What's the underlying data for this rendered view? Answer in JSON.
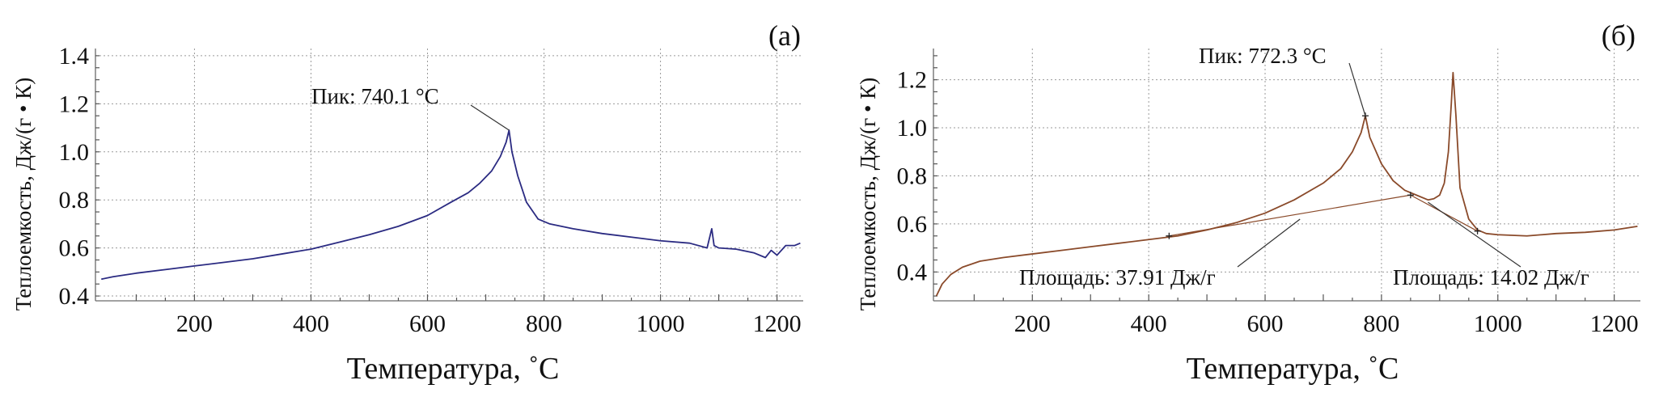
{
  "chart_data": [
    {
      "type": "line",
      "panel_label": "(a)",
      "xlabel": "Температура, ˚С",
      "ylabel": "Теплоемкость, Дж/(г • К)",
      "xlim": [
        30,
        1245
      ],
      "ylim": [
        0.38,
        1.43
      ],
      "xticks": [
        200,
        400,
        600,
        800,
        1000,
        1200
      ],
      "yticks": [
        0.4,
        0.6,
        0.8,
        1.0,
        1.2,
        1.4
      ],
      "ytick_labels": [
        "0.4",
        "0.6",
        "0.8",
        "1.0",
        "1.2",
        "1.4"
      ],
      "grid": true,
      "color": "#2b2b82",
      "series": [
        {
          "x": [
            40,
            60,
            100,
            150,
            200,
            250,
            300,
            350,
            400,
            450,
            500,
            550,
            600,
            640,
            670,
            690,
            710,
            725,
            735,
            740,
            745,
            755,
            770,
            790,
            810,
            850,
            900,
            950,
            1000,
            1050,
            1080,
            1088,
            1092,
            1100,
            1130,
            1160,
            1180,
            1190,
            1200,
            1215,
            1230,
            1240
          ],
          "y": [
            0.47,
            0.48,
            0.495,
            0.51,
            0.525,
            0.54,
            0.555,
            0.575,
            0.595,
            0.625,
            0.655,
            0.69,
            0.735,
            0.79,
            0.83,
            0.87,
            0.92,
            0.98,
            1.04,
            1.09,
            1.0,
            0.9,
            0.79,
            0.72,
            0.7,
            0.68,
            0.66,
            0.645,
            0.63,
            0.62,
            0.6,
            0.68,
            0.61,
            0.6,
            0.595,
            0.58,
            0.56,
            0.59,
            0.57,
            0.61,
            0.61,
            0.62
          ]
        }
      ],
      "annotations": [
        {
          "text": "Пик: 740.1 °С",
          "x": 740.1,
          "y": 1.09
        }
      ]
    },
    {
      "type": "line",
      "panel_label": "(б)",
      "xlabel": "Температура, ˚С",
      "ylabel": "Теплоемкость, Дж/(г • К)",
      "xlim": [
        30,
        1245
      ],
      "ylim": [
        0.28,
        1.33
      ],
      "xticks": [
        200,
        400,
        600,
        800,
        1000,
        1200
      ],
      "yticks": [
        0.4,
        0.6,
        0.8,
        1.0,
        1.2
      ],
      "ytick_labels": [
        "0.4",
        "0.6",
        "0.8",
        "1.0",
        "1.2"
      ],
      "grid": true,
      "color": "#8a4a2a",
      "series": [
        {
          "x": [
            35,
            45,
            60,
            80,
            110,
            150,
            200,
            250,
            300,
            350,
            400,
            450,
            500,
            550,
            600,
            650,
            700,
            730,
            750,
            765,
            772.3,
            780,
            800,
            820,
            840,
            860,
            880,
            890,
            900,
            908,
            915,
            920,
            923,
            928,
            935,
            950,
            965,
            980,
            1000,
            1050,
            1100,
            1150,
            1200,
            1240
          ],
          "y": [
            0.3,
            0.35,
            0.39,
            0.42,
            0.445,
            0.46,
            0.475,
            0.49,
            0.505,
            0.52,
            0.535,
            0.55,
            0.575,
            0.605,
            0.645,
            0.7,
            0.77,
            0.83,
            0.9,
            0.98,
            1.05,
            0.96,
            0.85,
            0.78,
            0.74,
            0.72,
            0.7,
            0.705,
            0.72,
            0.77,
            0.9,
            1.1,
            1.23,
            1.05,
            0.75,
            0.62,
            0.575,
            0.56,
            0.555,
            0.55,
            0.56,
            0.565,
            0.575,
            0.59
          ]
        }
      ],
      "baselines": [
        {
          "x": [
            435,
            850
          ],
          "y": [
            0.55,
            0.72
          ]
        },
        {
          "x": [
            850,
            965
          ],
          "y": [
            0.72,
            0.57
          ]
        }
      ],
      "markers": [
        {
          "x": 772.3,
          "y": 1.05
        },
        {
          "x": 435,
          "y": 0.55
        },
        {
          "x": 850,
          "y": 0.72
        },
        {
          "x": 965,
          "y": 0.57
        }
      ],
      "annotations": [
        {
          "text": "Пик: 772.3 °С",
          "x": 772.3,
          "y": 1.05
        },
        {
          "text": "Площадь: 37.91 Дж/г",
          "x": 660,
          "y": 0.68
        },
        {
          "text": "Площадь: 14.02 Дж/г",
          "x": 880,
          "y": 0.69
        }
      ]
    }
  ]
}
